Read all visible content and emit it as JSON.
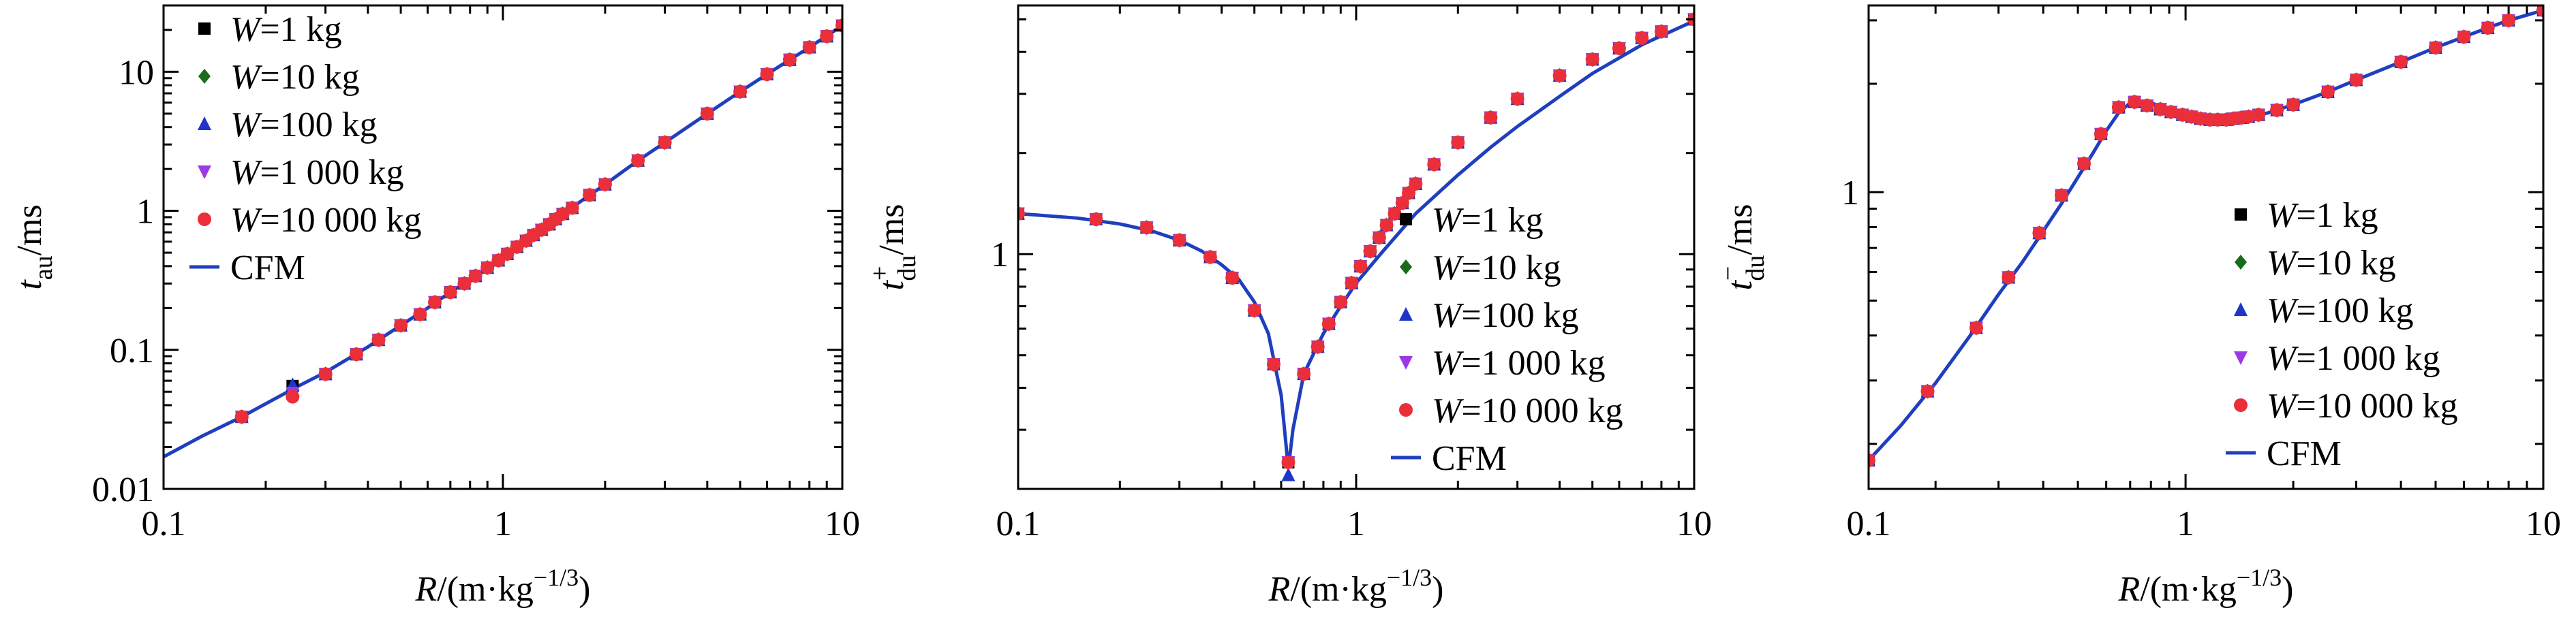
{
  "chart_data": [
    {
      "type": "line",
      "title": "",
      "xlabel": "R/(m·kg^-1/3)",
      "ylabel": "t_au/ms",
      "xscale": "log",
      "yscale": "log",
      "xlim": [
        0.1,
        10
      ],
      "ylim": [
        0.01,
        30
      ],
      "x_ticks": [
        0.1,
        1,
        10
      ],
      "x_tick_labels": [
        "0.1",
        "1",
        "10"
      ],
      "y_ticks": [
        0.01,
        0.1,
        1,
        10
      ],
      "y_tick_labels": [
        "0.01",
        "0.1",
        "1",
        "10"
      ],
      "legend_position": "top-left",
      "grid": false,
      "x": [
        0.17,
        0.24,
        0.3,
        0.37,
        0.43,
        0.5,
        0.57,
        0.63,
        0.7,
        0.77,
        0.83,
        0.9,
        0.97,
        1.03,
        1.1,
        1.17,
        1.23,
        1.3,
        1.37,
        1.43,
        1.5,
        1.6,
        1.8,
        2.0,
        2.5,
        3.0,
        4.0,
        5.0,
        6.0,
        7.0,
        8.0,
        9.0,
        10.0
      ],
      "series": [
        {
          "name": "W=1 kg",
          "marker": "square",
          "color": "#000000",
          "values": [
            0.033,
            0.055,
            0.067,
            0.093,
            0.118,
            0.15,
            0.18,
            0.22,
            0.26,
            0.3,
            0.34,
            0.39,
            0.44,
            0.49,
            0.55,
            0.61,
            0.67,
            0.73,
            0.8,
            0.87,
            0.95,
            1.05,
            1.3,
            1.55,
            2.3,
            3.1,
            5.0,
            7.2,
            9.6,
            12.2,
            15.0,
            18.0,
            21.5
          ]
        },
        {
          "name": "W=10 kg",
          "marker": "diamond",
          "color": "#1a6b1a",
          "values": [
            0.033,
            0.05,
            0.067,
            0.093,
            0.118,
            0.15,
            0.18,
            0.22,
            0.26,
            0.3,
            0.34,
            0.39,
            0.44,
            0.49,
            0.55,
            0.61,
            0.67,
            0.73,
            0.8,
            0.87,
            0.95,
            1.05,
            1.3,
            1.55,
            2.3,
            3.1,
            5.0,
            7.2,
            9.6,
            12.2,
            15.0,
            18.0,
            21.5
          ]
        },
        {
          "name": "W=100 kg",
          "marker": "triangle-up",
          "color": "#1f35c9",
          "values": [
            0.033,
            0.056,
            0.067,
            0.093,
            0.118,
            0.15,
            0.18,
            0.22,
            0.26,
            0.3,
            0.34,
            0.39,
            0.44,
            0.49,
            0.55,
            0.61,
            0.67,
            0.73,
            0.8,
            0.87,
            0.95,
            1.05,
            1.3,
            1.55,
            2.3,
            3.1,
            5.0,
            7.2,
            9.6,
            12.2,
            15.0,
            18.0,
            21.5
          ]
        },
        {
          "name": "W=1 000 kg",
          "marker": "triangle-down",
          "color": "#9b39e6",
          "values": [
            0.033,
            0.049,
            0.067,
            0.093,
            0.118,
            0.15,
            0.18,
            0.22,
            0.26,
            0.3,
            0.34,
            0.39,
            0.44,
            0.49,
            0.55,
            0.61,
            0.67,
            0.73,
            0.8,
            0.87,
            0.95,
            1.05,
            1.3,
            1.55,
            2.3,
            3.1,
            5.0,
            7.2,
            9.6,
            12.2,
            15.0,
            18.0,
            21.5
          ]
        },
        {
          "name": "W=10 000 kg",
          "marker": "circle",
          "color": "#ea2f3b",
          "values": [
            0.033,
            0.046,
            0.067,
            0.093,
            0.118,
            0.15,
            0.18,
            0.22,
            0.26,
            0.3,
            0.34,
            0.39,
            0.44,
            0.49,
            0.55,
            0.61,
            0.67,
            0.73,
            0.8,
            0.87,
            0.95,
            1.05,
            1.3,
            1.55,
            2.3,
            3.1,
            5.0,
            7.2,
            9.6,
            12.2,
            15.0,
            18.0,
            21.5
          ]
        }
      ],
      "curve": {
        "name": "CFM",
        "color": "#1f3fbf",
        "x": [
          0.1,
          0.13,
          0.17,
          0.2,
          0.25,
          0.3,
          0.4,
          0.5,
          0.6,
          0.7,
          0.8,
          1.0,
          1.2,
          1.5,
          2.0,
          2.5,
          3.0,
          4.0,
          5.0,
          6.0,
          7.0,
          8.0,
          10.0
        ],
        "y": [
          0.017,
          0.024,
          0.033,
          0.041,
          0.055,
          0.069,
          0.105,
          0.15,
          0.2,
          0.26,
          0.32,
          0.47,
          0.64,
          0.95,
          1.55,
          2.3,
          3.1,
          5.0,
          7.2,
          9.6,
          12.2,
          15.0,
          21.5
        ]
      }
    },
    {
      "type": "line",
      "title": "",
      "xlabel": "R/(m·kg^-1/3)",
      "ylabel": "t+_du/ms",
      "xscale": "log",
      "yscale": "log",
      "xlim": [
        0.1,
        10
      ],
      "ylim": [
        0.2,
        5.5
      ],
      "x_ticks": [
        0.1,
        1,
        10
      ],
      "x_tick_labels": [
        "0.1",
        "1",
        "10"
      ],
      "y_ticks": [
        1
      ],
      "y_tick_labels": [
        "1"
      ],
      "legend_position": "bottom-right",
      "grid": false,
      "x": [
        0.1,
        0.17,
        0.24,
        0.3,
        0.37,
        0.43,
        0.5,
        0.57,
        0.63,
        0.7,
        0.77,
        0.83,
        0.9,
        0.97,
        1.03,
        1.1,
        1.17,
        1.23,
        1.3,
        1.37,
        1.43,
        1.5,
        1.7,
        2.0,
        2.5,
        3.0,
        4.0,
        5.0,
        6.0,
        7.0,
        8.0,
        10.0
      ],
      "series": [
        {
          "name": "W=1 kg",
          "marker": "square",
          "color": "#000000",
          "values": [
            1.32,
            1.27,
            1.2,
            1.1,
            0.98,
            0.85,
            0.68,
            0.47,
            0.24,
            0.44,
            0.53,
            0.62,
            0.72,
            0.82,
            0.92,
            1.02,
            1.12,
            1.22,
            1.32,
            1.42,
            1.52,
            1.62,
            1.85,
            2.15,
            2.55,
            2.9,
            3.4,
            3.8,
            4.1,
            4.4,
            4.6,
            5.0
          ]
        },
        {
          "name": "W=10 kg",
          "marker": "diamond",
          "color": "#1a6b1a",
          "values": [
            1.32,
            1.27,
            1.2,
            1.1,
            0.98,
            0.85,
            0.68,
            0.47,
            0.24,
            0.44,
            0.53,
            0.62,
            0.72,
            0.82,
            0.92,
            1.02,
            1.12,
            1.22,
            1.32,
            1.42,
            1.52,
            1.62,
            1.85,
            2.15,
            2.55,
            2.9,
            3.4,
            3.8,
            4.1,
            4.4,
            4.6,
            5.0
          ]
        },
        {
          "name": "W=100 kg",
          "marker": "triangle-up",
          "color": "#1f35c9",
          "values": [
            1.32,
            1.27,
            1.2,
            1.1,
            0.98,
            0.85,
            0.68,
            0.47,
            0.22,
            0.44,
            0.53,
            0.62,
            0.72,
            0.82,
            0.92,
            1.02,
            1.12,
            1.22,
            1.32,
            1.42,
            1.52,
            1.62,
            1.85,
            2.15,
            2.55,
            2.9,
            3.4,
            3.8,
            4.1,
            4.4,
            4.6,
            5.0
          ]
        },
        {
          "name": "W=1 000 kg",
          "marker": "triangle-down",
          "color": "#9b39e6",
          "values": [
            1.32,
            1.27,
            1.2,
            1.1,
            0.98,
            0.85,
            0.68,
            0.47,
            0.24,
            0.44,
            0.53,
            0.62,
            0.72,
            0.82,
            0.92,
            1.02,
            1.12,
            1.22,
            1.32,
            1.42,
            1.52,
            1.62,
            1.85,
            2.15,
            2.55,
            2.9,
            3.4,
            3.8,
            4.1,
            4.4,
            4.6,
            5.0
          ]
        },
        {
          "name": "W=10 000 kg",
          "marker": "circle",
          "color": "#ea2f3b",
          "values": [
            1.32,
            1.27,
            1.2,
            1.1,
            0.98,
            0.85,
            0.68,
            0.47,
            0.24,
            0.44,
            0.53,
            0.62,
            0.72,
            0.82,
            0.92,
            1.02,
            1.12,
            1.22,
            1.32,
            1.42,
            1.52,
            1.62,
            1.85,
            2.15,
            2.55,
            2.9,
            3.4,
            3.8,
            4.1,
            4.4,
            4.6,
            5.0
          ]
        }
      ],
      "curve": {
        "name": "CFM",
        "color": "#1f3fbf",
        "x": [
          0.1,
          0.15,
          0.2,
          0.25,
          0.3,
          0.35,
          0.4,
          0.45,
          0.5,
          0.55,
          0.6,
          0.63,
          0.65,
          0.7,
          0.8,
          0.9,
          1.0,
          1.2,
          1.5,
          2.0,
          2.5,
          3.0,
          4.0,
          5.0,
          7.0,
          10.0
        ],
        "y": [
          1.32,
          1.28,
          1.23,
          1.17,
          1.1,
          1.02,
          0.93,
          0.84,
          0.72,
          0.58,
          0.38,
          0.23,
          0.3,
          0.44,
          0.58,
          0.7,
          0.82,
          1.02,
          1.32,
          1.72,
          2.08,
          2.4,
          2.95,
          3.45,
          4.2,
          4.95
        ]
      }
    },
    {
      "type": "line",
      "title": "",
      "xlabel": "R/(m·kg^-1/3)",
      "ylabel": "t−_du/ms",
      "xscale": "log",
      "yscale": "log",
      "xlim": [
        0.13,
        10
      ],
      "ylim": [
        0.15,
        3.3
      ],
      "x_ticks": [
        0.1,
        1,
        10
      ],
      "x_tick_labels": [
        "0.1",
        "1",
        "10"
      ],
      "y_ticks": [
        1
      ],
      "y_tick_labels": [
        "1"
      ],
      "legend_position": "bottom-right",
      "grid": false,
      "x": [
        0.13,
        0.19,
        0.26,
        0.32,
        0.39,
        0.45,
        0.52,
        0.58,
        0.65,
        0.72,
        0.78,
        0.85,
        0.91,
        0.98,
        1.04,
        1.1,
        1.17,
        1.23,
        1.3,
        1.36,
        1.43,
        1.5,
        1.6,
        1.8,
        2.0,
        2.5,
        3.0,
        4.0,
        5.0,
        6.0,
        7.0,
        8.0,
        10.0
      ],
      "series": [
        {
          "name": "W=1 kg",
          "marker": "square",
          "color": "#000000",
          "values": [
            0.18,
            0.28,
            0.42,
            0.58,
            0.77,
            0.98,
            1.2,
            1.45,
            1.72,
            1.78,
            1.74,
            1.7,
            1.67,
            1.64,
            1.62,
            1.6,
            1.59,
            1.59,
            1.59,
            1.6,
            1.61,
            1.62,
            1.64,
            1.69,
            1.75,
            1.9,
            2.05,
            2.3,
            2.52,
            2.7,
            2.86,
            3.0,
            3.2
          ]
        },
        {
          "name": "W=10 kg",
          "marker": "diamond",
          "color": "#1a6b1a",
          "values": [
            0.18,
            0.28,
            0.42,
            0.58,
            0.77,
            0.98,
            1.2,
            1.45,
            1.72,
            1.78,
            1.74,
            1.7,
            1.67,
            1.64,
            1.62,
            1.6,
            1.59,
            1.59,
            1.59,
            1.6,
            1.61,
            1.62,
            1.64,
            1.69,
            1.75,
            1.9,
            2.05,
            2.3,
            2.52,
            2.7,
            2.86,
            3.0,
            3.2
          ]
        },
        {
          "name": "W=100 kg",
          "marker": "triangle-up",
          "color": "#1f35c9",
          "values": [
            0.18,
            0.28,
            0.42,
            0.58,
            0.77,
            0.98,
            1.2,
            1.45,
            1.72,
            1.78,
            1.74,
            1.7,
            1.67,
            1.64,
            1.62,
            1.6,
            1.59,
            1.59,
            1.59,
            1.6,
            1.61,
            1.62,
            1.64,
            1.69,
            1.75,
            1.9,
            2.05,
            2.3,
            2.52,
            2.7,
            2.86,
            3.0,
            3.2
          ]
        },
        {
          "name": "W=1 000 kg",
          "marker": "triangle-down",
          "color": "#9b39e6",
          "values": [
            0.18,
            0.28,
            0.42,
            0.58,
            0.77,
            0.98,
            1.2,
            1.45,
            1.72,
            1.78,
            1.74,
            1.7,
            1.67,
            1.64,
            1.62,
            1.6,
            1.59,
            1.59,
            1.59,
            1.6,
            1.61,
            1.62,
            1.64,
            1.69,
            1.75,
            1.9,
            2.05,
            2.3,
            2.52,
            2.7,
            2.86,
            3.0,
            3.2
          ]
        },
        {
          "name": "W=10 000 kg",
          "marker": "circle",
          "color": "#ea2f3b",
          "values": [
            0.18,
            0.28,
            0.42,
            0.58,
            0.77,
            0.98,
            1.2,
            1.45,
            1.72,
            1.78,
            1.74,
            1.7,
            1.67,
            1.64,
            1.62,
            1.6,
            1.59,
            1.59,
            1.59,
            1.6,
            1.61,
            1.62,
            1.64,
            1.69,
            1.75,
            1.9,
            2.05,
            2.3,
            2.52,
            2.7,
            2.86,
            3.0,
            3.2
          ]
        }
      ],
      "curve": {
        "name": "CFM",
        "color": "#1f3fbf",
        "x": [
          0.13,
          0.16,
          0.2,
          0.25,
          0.3,
          0.35,
          0.4,
          0.45,
          0.5,
          0.55,
          0.6,
          0.65,
          0.7,
          0.75,
          0.8,
          0.9,
          1.0,
          1.1,
          1.2,
          1.3,
          1.5,
          1.7,
          2.0,
          2.5,
          3.0,
          4.0,
          5.0,
          6.0,
          7.0,
          8.0,
          10.0
        ],
        "y": [
          0.18,
          0.225,
          0.295,
          0.4,
          0.52,
          0.64,
          0.78,
          0.93,
          1.1,
          1.28,
          1.48,
          1.66,
          1.77,
          1.79,
          1.77,
          1.7,
          1.64,
          1.61,
          1.6,
          1.6,
          1.62,
          1.66,
          1.75,
          1.9,
          2.05,
          2.3,
          2.52,
          2.7,
          2.86,
          3.0,
          3.2
        ]
      }
    }
  ]
}
